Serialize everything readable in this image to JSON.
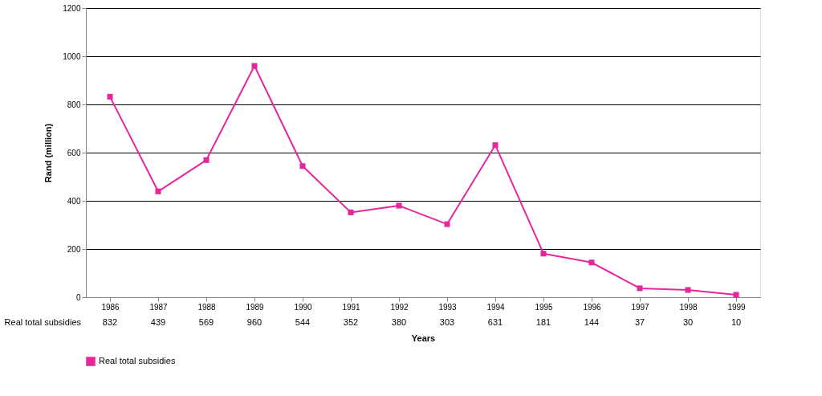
{
  "chart_data": {
    "type": "line",
    "xlabel": "Years",
    "ylabel": "Rand (million)",
    "categories": [
      "1986",
      "1987",
      "1988",
      "1989",
      "1990",
      "1991",
      "1992",
      "1993",
      "1994",
      "1995",
      "1996",
      "1997",
      "1998",
      "1999"
    ],
    "series": [
      {
        "name": "Real total subsidies",
        "color": "#e6279b",
        "values": [
          832,
          439,
          569,
          960,
          544,
          352,
          380,
          303,
          631,
          181,
          144,
          37,
          30,
          10
        ]
      }
    ],
    "ylim": [
      0,
      1200
    ],
    "yticks": [
      0,
      200,
      400,
      600,
      800,
      1000,
      1200
    ],
    "grid": "y",
    "legend": "bottom",
    "marker": "square",
    "line_style": "solid",
    "data_labels": true
  }
}
